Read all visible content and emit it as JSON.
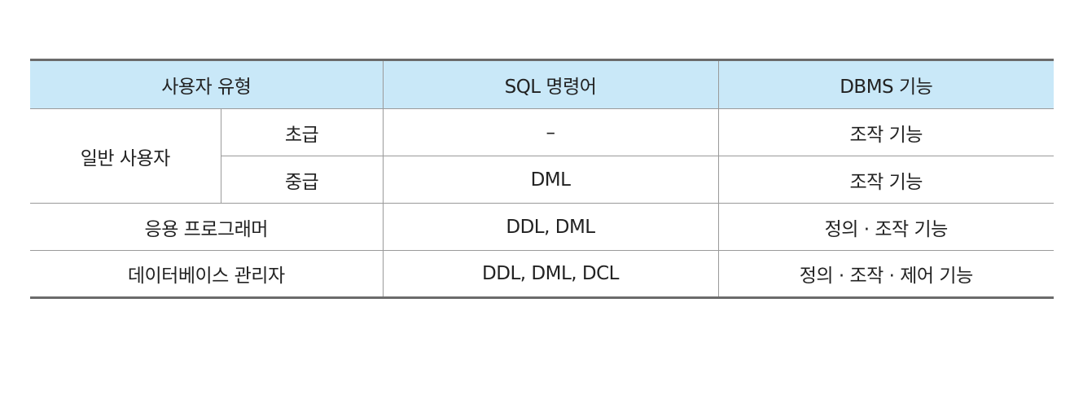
{
  "table": {
    "headers": {
      "user_type": "사용자 유형",
      "sql": "SQL 명령어",
      "dbms": "DBMS 기능"
    },
    "rows": {
      "general_user": {
        "label": "일반 사용자",
        "beginner": {
          "level": "초급",
          "sql": "–",
          "dbms": "조작 기능"
        },
        "intermediate": {
          "level": "중급",
          "sql": "DML",
          "dbms": "조작 기능"
        }
      },
      "app_programmer": {
        "label": "응용 프로그래머",
        "sql": "DDL, DML",
        "dbms": "정의 · 조작 기능"
      },
      "dba": {
        "label": "데이터베이스 관리자",
        "sql": "DDL, DML, DCL",
        "dbms": "정의 · 조작 · 제어 기능"
      }
    }
  }
}
